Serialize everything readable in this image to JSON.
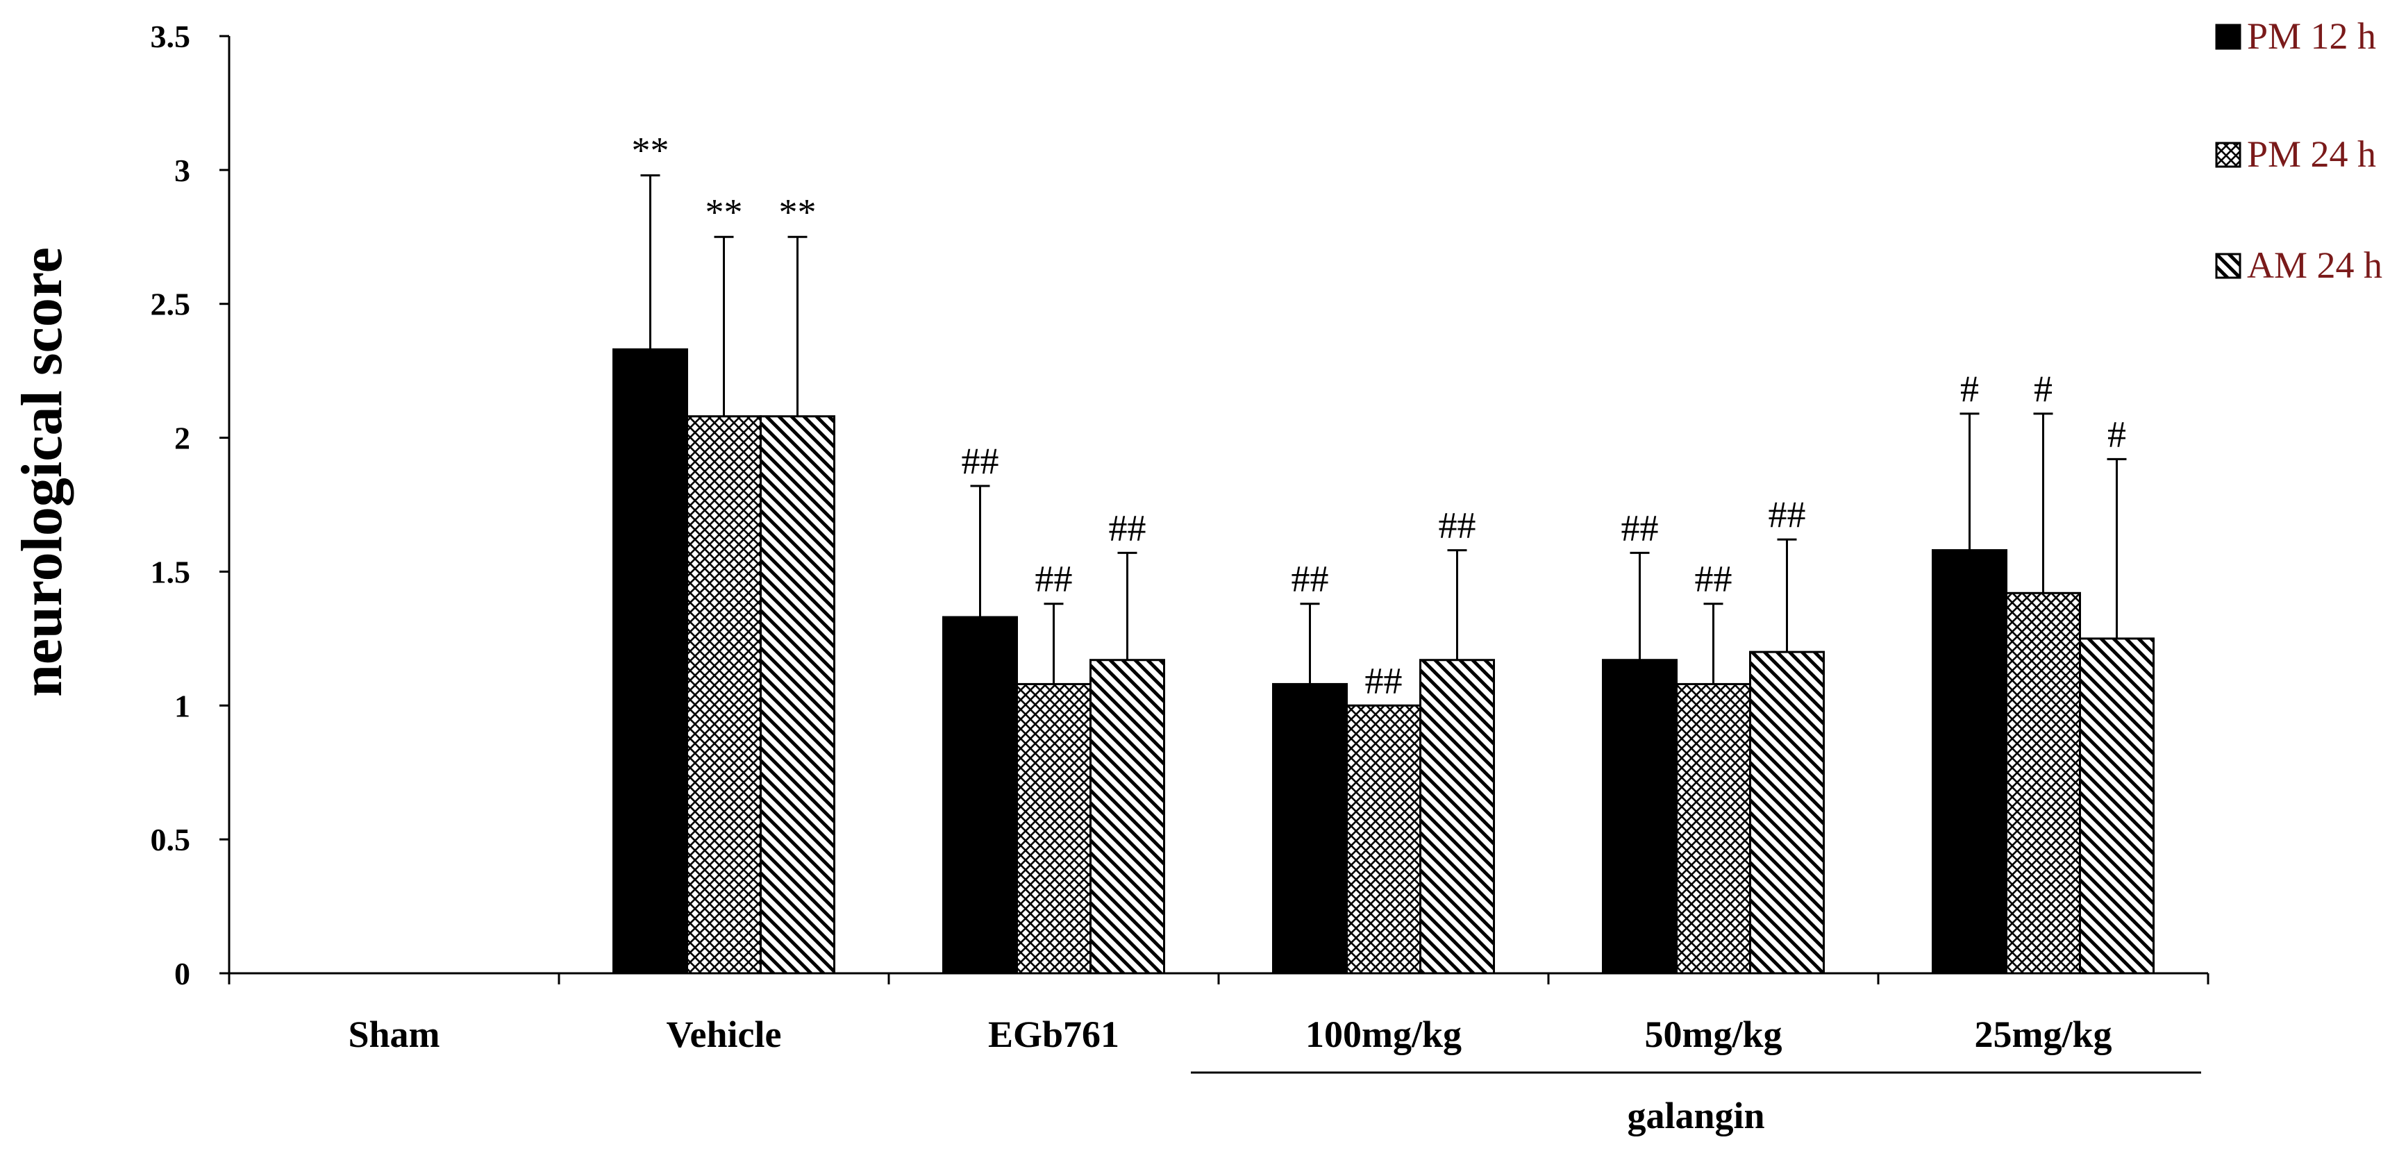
{
  "chart_data": {
    "type": "bar",
    "ylabel": "neurological  score",
    "ylim": [
      0,
      3.5
    ],
    "yticks": [
      0,
      0.5,
      1,
      1.5,
      2,
      2.5,
      3,
      3.5
    ],
    "ytick_labels": [
      "0",
      "0.5",
      "1",
      "1.5",
      "2",
      "2.5",
      "3",
      "3.5"
    ],
    "categories": [
      "Sham",
      "Vehicle",
      "EGb761",
      "100mg/kg",
      "50mg/kg",
      "25mg/kg"
    ],
    "group_label": "galangin",
    "group_categories": [
      "100mg/kg",
      "50mg/kg",
      "25mg/kg"
    ],
    "legend_position": "top-right",
    "series": [
      {
        "name": "PM 12 h",
        "pattern": "solid",
        "values": [
          0,
          2.33,
          1.33,
          1.08,
          1.17,
          1.58
        ],
        "errors": [
          0,
          0.65,
          0.49,
          0.3,
          0.4,
          0.51
        ],
        "annotations": [
          "",
          "**",
          "##",
          "##",
          "##",
          "#"
        ]
      },
      {
        "name": "PM 24 h",
        "pattern": "crosshatch",
        "values": [
          0,
          2.08,
          1.08,
          1.0,
          1.08,
          1.42
        ],
        "errors": [
          0,
          0.67,
          0.3,
          0.0,
          0.3,
          0.67
        ],
        "annotations": [
          "",
          "**",
          "##",
          "##",
          "##",
          "#"
        ]
      },
      {
        "name": "AM 24 h",
        "pattern": "diagonal",
        "values": [
          0,
          2.08,
          1.17,
          1.17,
          1.2,
          1.25
        ],
        "errors": [
          0,
          0.67,
          0.4,
          0.41,
          0.42,
          0.67
        ],
        "annotations": [
          "",
          "**",
          "##",
          "##",
          "##",
          "#"
        ]
      }
    ]
  }
}
